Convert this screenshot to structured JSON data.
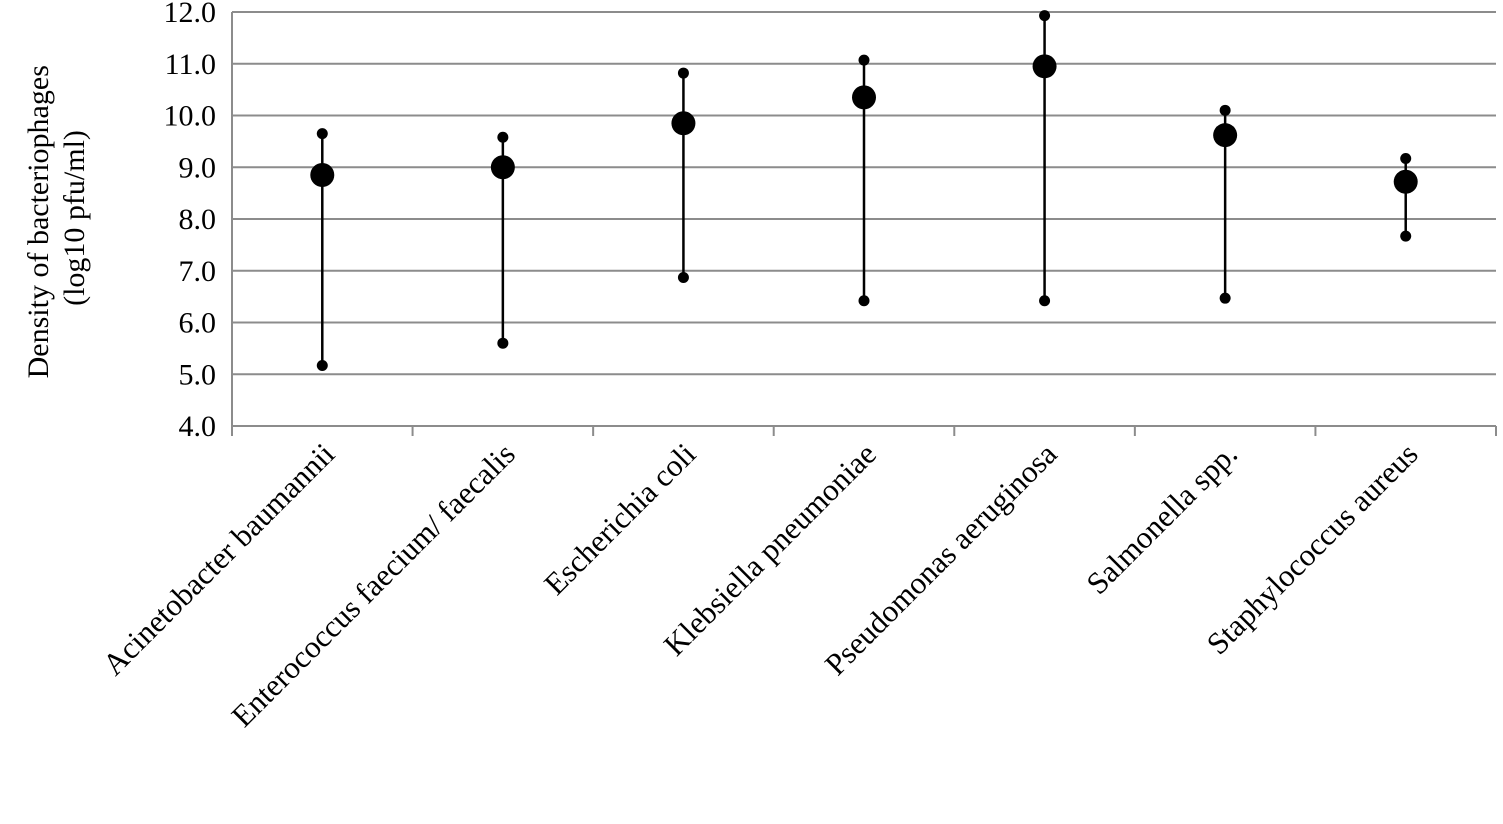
{
  "chart_data": {
    "type": "scatter",
    "title": "",
    "xlabel": "",
    "ylabel_lines": [
      "Density of bacteriophages",
      "(log10 pfu/ml)"
    ],
    "ylim": [
      4.0,
      12.0
    ],
    "yticks": [
      4.0,
      5.0,
      6.0,
      7.0,
      8.0,
      9.0,
      10.0,
      11.0,
      12.0
    ],
    "ytick_labels": [
      "4.0",
      "5.0",
      "6.0",
      "7.0",
      "8.0",
      "9.0",
      "10.0",
      "11.0",
      "12.0"
    ],
    "grid": true,
    "marker_color": "#000000",
    "grid_color": "#8c8c8c",
    "categories": [
      "Acinetobacter baumannii",
      "Enterococcus faecium/ faecalis",
      "Escherichia coli",
      "Klebsiella pneumoniae",
      "Pseudomonas aeruginosa",
      "Salmonella spp.",
      "Staphylococcus aureus"
    ],
    "series": [
      {
        "role": "mean",
        "values": [
          8.85,
          9.0,
          9.85,
          10.35,
          10.95,
          9.62,
          8.72
        ]
      },
      {
        "role": "max",
        "values": [
          9.65,
          9.58,
          10.82,
          11.07,
          11.93,
          10.1,
          9.17
        ]
      },
      {
        "role": "min",
        "values": [
          5.17,
          5.6,
          6.87,
          6.42,
          6.42,
          6.47,
          7.67
        ]
      }
    ]
  }
}
